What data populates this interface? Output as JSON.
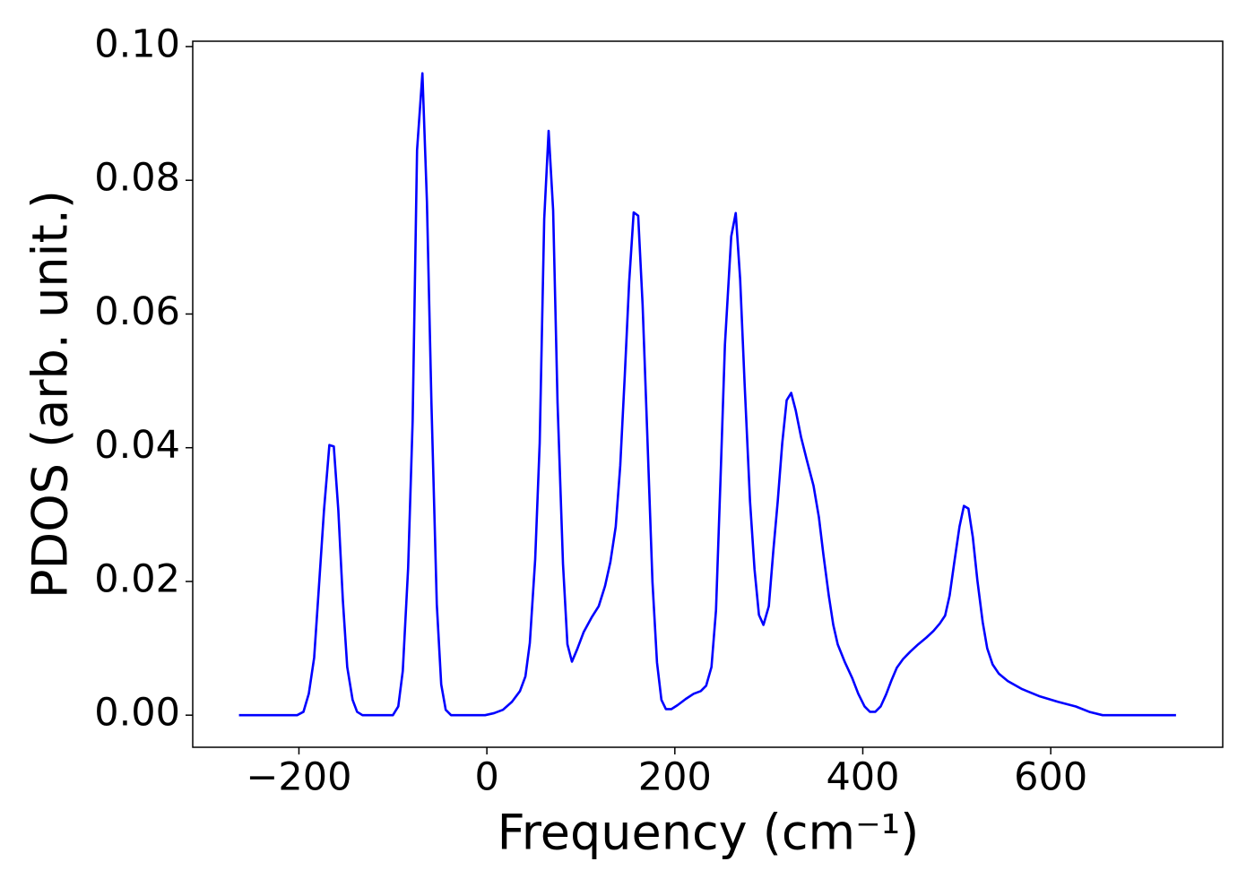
{
  "chart_data": {
    "type": "line",
    "x_label": "Frequency (cm⁻¹)",
    "y_label": "PDOS (arb. unit.)",
    "xlim": [
      -313,
      783
    ],
    "ylim": [
      -0.0048,
      0.1008
    ],
    "xticks": [
      {
        "value": -200,
        "label": "−200"
      },
      0,
      200,
      400,
      600
    ],
    "yticks": [
      {
        "value": 0,
        "label": "0.00"
      },
      {
        "value": 0.02,
        "label": "0.02"
      },
      {
        "value": 0.04,
        "label": "0.04"
      },
      {
        "value": 0.06,
        "label": "0.06"
      },
      {
        "value": 0.08,
        "label": "0.08"
      },
      {
        "value": 0.1,
        "label": "0.10"
      }
    ],
    "grid": false,
    "series": [
      {
        "color": "#0000ff",
        "x": [
          -263.8,
          -201.9,
          -195.2,
          -189.5,
          -183.8,
          -179,
          -173.3,
          -167.6,
          -162.9,
          -158.1,
          -153.3,
          -148.6,
          -142.9,
          -138.1,
          -132.4,
          -100,
          -94.3,
          -89.5,
          -83.8,
          -79,
          -74.3,
          -68.6,
          -63.8,
          -59,
          -53.3,
          -48.6,
          -43.8,
          -38.1,
          -1.9,
          7.6,
          17.1,
          26.7,
          35.2,
          41,
          45.7,
          51.4,
          56.2,
          61,
          65.7,
          70.5,
          75.2,
          81,
          85.7,
          90.5,
          96.2,
          102.9,
          111.4,
          119,
          125.7,
          131.4,
          137.1,
          141.9,
          146.7,
          151.4,
          156.2,
          161,
          165.7,
          170.5,
          176.2,
          181,
          185.7,
          190.5,
          196.2,
          202.9,
          211.4,
          220,
          227.6,
          233.3,
          239,
          243.8,
          248.6,
          253.3,
          260,
          264.8,
          269.5,
          274.3,
          280,
          284.8,
          289.5,
          294.3,
          300,
          304.8,
          309.5,
          314.3,
          319,
          323.8,
          328.6,
          334.3,
          340,
          347.6,
          353.3,
          358.1,
          363.8,
          368.6,
          373.3,
          381,
          388.6,
          395.2,
          401.9,
          407.6,
          413.3,
          419,
          424.8,
          430.5,
          436.2,
          442.9,
          450.5,
          459,
          467.6,
          475.2,
          481.9,
          487.6,
          492.4,
          497.1,
          502.9,
          507.6,
          512.4,
          517.1,
          521.9,
          527.6,
          532.4,
          538.1,
          544.8,
          554.3,
          569.5,
          588.6,
          607.6,
          626.7,
          641,
          655.2,
          733.3
        ],
        "values": [
          0,
          0,
          0.0005,
          0.0032,
          0.0086,
          0.0186,
          0.0307,
          0.0404,
          0.0402,
          0.0307,
          0.0173,
          0.0072,
          0.0023,
          0.0005,
          0,
          0,
          0.0013,
          0.0066,
          0.022,
          0.044,
          0.0845,
          0.096,
          0.0768,
          0.0467,
          0.0166,
          0.0046,
          0.0008,
          0,
          0,
          0.0003,
          0.0008,
          0.002,
          0.0036,
          0.0058,
          0.0108,
          0.0233,
          0.0407,
          0.0742,
          0.0874,
          0.0755,
          0.0467,
          0.0226,
          0.0106,
          0.008,
          0.0099,
          0.0124,
          0.0146,
          0.0163,
          0.0193,
          0.0229,
          0.0282,
          0.0373,
          0.0507,
          0.0648,
          0.0752,
          0.0747,
          0.0614,
          0.0427,
          0.0199,
          0.0079,
          0.0023,
          0.0009,
          0.0009,
          0.0015,
          0.0024,
          0.0032,
          0.0036,
          0.0044,
          0.0072,
          0.0157,
          0.0353,
          0.0554,
          0.0716,
          0.0751,
          0.0652,
          0.0494,
          0.032,
          0.0218,
          0.015,
          0.0135,
          0.0163,
          0.0246,
          0.032,
          0.0407,
          0.0471,
          0.0482,
          0.0456,
          0.0416,
          0.0384,
          0.0343,
          0.0296,
          0.024,
          0.0179,
          0.0135,
          0.0106,
          0.0079,
          0.0056,
          0.0032,
          0.0013,
          0.0005,
          0.0005,
          0.0013,
          0.0031,
          0.0052,
          0.0071,
          0.0084,
          0.0095,
          0.0106,
          0.0116,
          0.0126,
          0.0137,
          0.0149,
          0.0179,
          0.0226,
          0.0282,
          0.0313,
          0.0309,
          0.0266,
          0.0202,
          0.0139,
          0.01,
          0.0076,
          0.0062,
          0.0051,
          0.0039,
          0.0028,
          0.002,
          0.0013,
          0.0005,
          0,
          0
        ]
      }
    ]
  }
}
